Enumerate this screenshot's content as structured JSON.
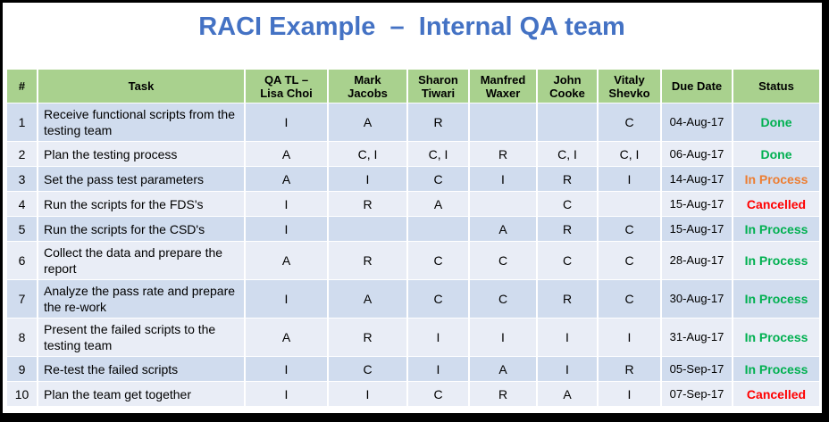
{
  "title": "RACI Example  –  Internal QA team",
  "status_colors": {
    "Done": "#00B050",
    "In Process": "#00B050",
    "In Process (orange)": "#ED7D31",
    "Cancelled": "#FF0000"
  },
  "table": {
    "headers": {
      "num": "#",
      "task": "Task",
      "qa_tl_line1": "QA TL –",
      "qa_tl_line2": "Lisa Choi",
      "mark_line1": "Mark",
      "mark_line2": "Jacobs",
      "sharon_line1": "Sharon",
      "sharon_line2": "Tiwari",
      "manfred_line1": "Manfred",
      "manfred_line2": "Waxer",
      "john_line1": "John",
      "john_line2": "Cooke",
      "vitaly_line1": "Vitaly",
      "vitaly_line2": "Shevko",
      "due": "Due Date",
      "status": "Status"
    },
    "rows": [
      {
        "num": "1",
        "task": "Receive functional scripts from the testing team",
        "qa_tl": "I",
        "mark": "A",
        "sharon": "R",
        "manfred": "",
        "john": "",
        "vitaly": "C",
        "due": "04-Aug-17",
        "status": "Done",
        "status_color": "#00B050"
      },
      {
        "num": "2",
        "task": "Plan the testing process",
        "qa_tl": "A",
        "mark": "C, I",
        "sharon": "C, I",
        "manfred": "R",
        "john": "C, I",
        "vitaly": "C, I",
        "due": "06-Aug-17",
        "status": "Done",
        "status_color": "#00B050"
      },
      {
        "num": "3",
        "task": "Set the pass test parameters",
        "qa_tl": "A",
        "mark": "I",
        "sharon": "C",
        "manfred": "I",
        "john": "R",
        "vitaly": "I",
        "due": "14-Aug-17",
        "status": "In Process",
        "status_color": "#ED7D31"
      },
      {
        "num": "4",
        "task": "Run the scripts for the FDS's",
        "qa_tl": "I",
        "mark": "R",
        "sharon": "A",
        "manfred": "",
        "john": "C",
        "vitaly": "",
        "due": "15-Aug-17",
        "status": "Cancelled",
        "status_color": "#FF0000"
      },
      {
        "num": "5",
        "task": "Run the scripts for the CSD's",
        "qa_tl": "I",
        "mark": "",
        "sharon": "",
        "manfred": "A",
        "john": "R",
        "vitaly": "C",
        "due": "15-Aug-17",
        "status": "In Process",
        "status_color": "#00B050"
      },
      {
        "num": "6",
        "task": "Collect the data and prepare the report",
        "qa_tl": "A",
        "mark": "R",
        "sharon": "C",
        "manfred": "C",
        "john": "C",
        "vitaly": "C",
        "due": "28-Aug-17",
        "status": "In Process",
        "status_color": "#00B050"
      },
      {
        "num": "7",
        "task": "Analyze the pass rate and prepare the re-work",
        "qa_tl": "I",
        "mark": "A",
        "sharon": "C",
        "manfred": "C",
        "john": "R",
        "vitaly": "C",
        "due": "30-Aug-17",
        "status": "In Process",
        "status_color": "#00B050"
      },
      {
        "num": "8",
        "task": "Present the failed scripts to the testing team",
        "qa_tl": "A",
        "mark": "R",
        "sharon": "I",
        "manfred": "I",
        "john": "I",
        "vitaly": "I",
        "due": "31-Aug-17",
        "status": "In Process",
        "status_color": "#00B050"
      },
      {
        "num": "9",
        "task": "Re-test the failed scripts",
        "qa_tl": "I",
        "mark": "C",
        "sharon": "I",
        "manfred": "A",
        "john": "I",
        "vitaly": "R",
        "due": "05-Sep-17",
        "status": "In Process",
        "status_color": "#00B050"
      },
      {
        "num": "10",
        "task": "Plan the team get together",
        "qa_tl": "I",
        "mark": "I",
        "sharon": "C",
        "manfred": "R",
        "john": "A",
        "vitaly": "I",
        "due": "07-Sep-17",
        "status": "Cancelled",
        "status_color": "#FF0000"
      }
    ]
  }
}
